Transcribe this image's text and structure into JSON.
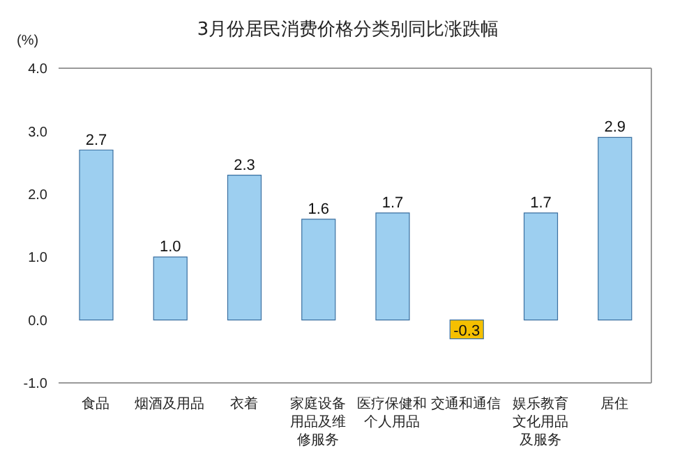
{
  "chart_data": {
    "type": "bar",
    "title": "3月份居民消费价格分类别同比涨跌幅",
    "ylabel": "(%)",
    "categories": [
      "食品",
      "烟酒及用品",
      "衣着",
      "家庭设备用品及维修服务",
      "医疗保健和个人用品",
      "交通和通信",
      "娱乐教育文化用品及服务",
      "居住"
    ],
    "values": [
      2.7,
      1.0,
      2.3,
      1.6,
      1.7,
      -0.3,
      1.7,
      2.9
    ],
    "colors": [
      "#9dcff0",
      "#9dcff0",
      "#9dcff0",
      "#9dcff0",
      "#9dcff0",
      "#f5c000",
      "#9dcff0",
      "#9dcff0"
    ],
    "value_labels": [
      "2.7",
      "1.0",
      "2.3",
      "1.6",
      "1.7",
      "-0.3",
      "1.7",
      "2.9"
    ],
    "ylim": [
      -1.0,
      4.0
    ],
    "yticks": [
      {
        "value": -1,
        "label": "-1.0"
      },
      {
        "value": 0,
        "label": "0.0"
      },
      {
        "value": 1,
        "label": "1.0"
      },
      {
        "value": 2,
        "label": "2.0"
      },
      {
        "value": 3,
        "label": "3.0"
      },
      {
        "value": 4,
        "label": "4.0"
      }
    ],
    "grid": false,
    "legend": false
  }
}
